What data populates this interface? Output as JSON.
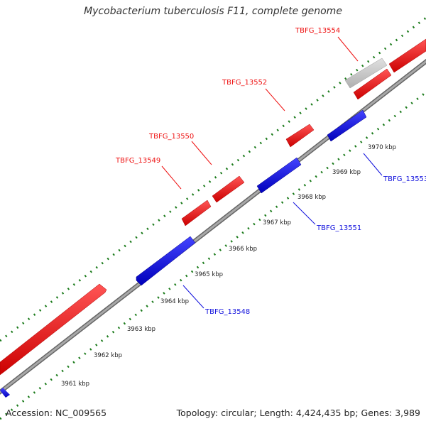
{
  "title": "Mycobacterium tuberculosis F11, complete genome",
  "footer": {
    "accession": "Accession: NC_009565",
    "summary": "Topology: circular; Length: 4,424,435 bp; Genes: 3,989"
  },
  "colors": {
    "forward": "#ee1111",
    "reverse": "#1111dd",
    "other": "#cccccc",
    "backbone": "#888888",
    "ticks": "#1a7a1a"
  },
  "scale_labels": [
    "3961 kbp",
    "3962 kbp",
    "3963 kbp",
    "3964 kbp",
    "3965 kbp",
    "3966 kbp",
    "3967 kbp",
    "3968 kbp",
    "3969 kbp",
    "3970 kbp"
  ],
  "genes": [
    {
      "label": "TBFG_13548",
      "strand": "reverse"
    },
    {
      "label": "TBFG_13549",
      "strand": "forward"
    },
    {
      "label": "TBFG_13550",
      "strand": "forward"
    },
    {
      "label": "TBFG_13551",
      "strand": "reverse"
    },
    {
      "label": "TBFG_13552",
      "strand": "forward"
    },
    {
      "label": "TBFG_13553",
      "strand": "reverse"
    },
    {
      "label": "TBFG_13554",
      "strand": "forward"
    }
  ]
}
